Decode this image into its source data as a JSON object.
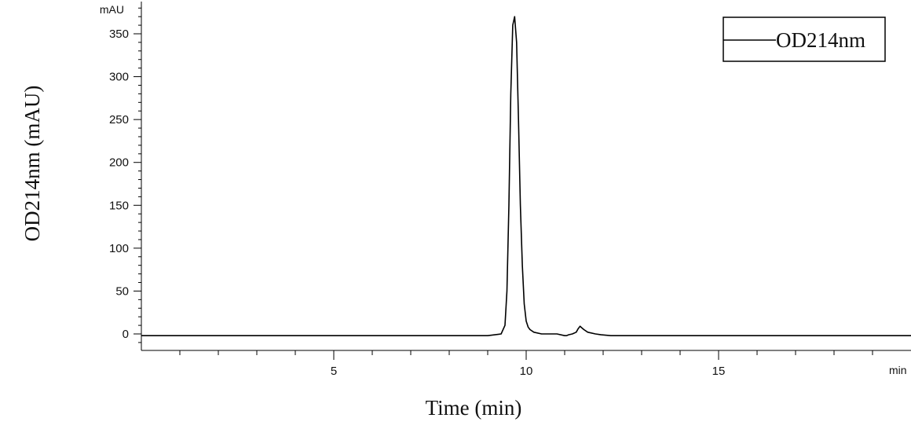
{
  "chart_data": {
    "type": "line",
    "title": "",
    "xlabel": "Time (min)",
    "ylabel": "OD214nm (mAU)",
    "x_unit": "min",
    "y_unit": "mAU",
    "xlim": [
      0,
      20
    ],
    "ylim": [
      -20,
      385
    ],
    "x_ticks": [
      5,
      10,
      15
    ],
    "x_tick_labels": [
      "5",
      "10",
      "15"
    ],
    "y_ticks": [
      0,
      50,
      100,
      150,
      200,
      250,
      300,
      350
    ],
    "y_tick_labels": [
      "0",
      "50",
      "100",
      "150",
      "200",
      "250",
      "300",
      "350"
    ],
    "grid": false,
    "legend": {
      "placement": "top-right",
      "entries": [
        "OD214nm"
      ]
    },
    "series": [
      {
        "name": "OD214nm",
        "color": "#000000",
        "x": [
          0,
          9.0,
          9.35,
          9.45,
          9.5,
          9.55,
          9.6,
          9.65,
          9.7,
          9.75,
          9.8,
          9.85,
          9.9,
          9.95,
          10.0,
          10.05,
          10.1,
          10.2,
          10.4,
          10.8,
          11.0,
          11.05,
          11.1,
          11.2,
          11.3,
          11.35,
          11.4,
          11.45,
          11.5,
          11.6,
          11.8,
          11.95,
          12.2,
          20
        ],
        "y": [
          -2,
          -2,
          0,
          10,
          50,
          150,
          280,
          360,
          370,
          340,
          250,
          150,
          80,
          35,
          15,
          8,
          5,
          2,
          0,
          0,
          -2,
          -2,
          -1,
          0,
          2,
          6,
          9,
          7,
          5,
          2,
          0,
          -1,
          -2,
          -2
        ]
      }
    ]
  }
}
